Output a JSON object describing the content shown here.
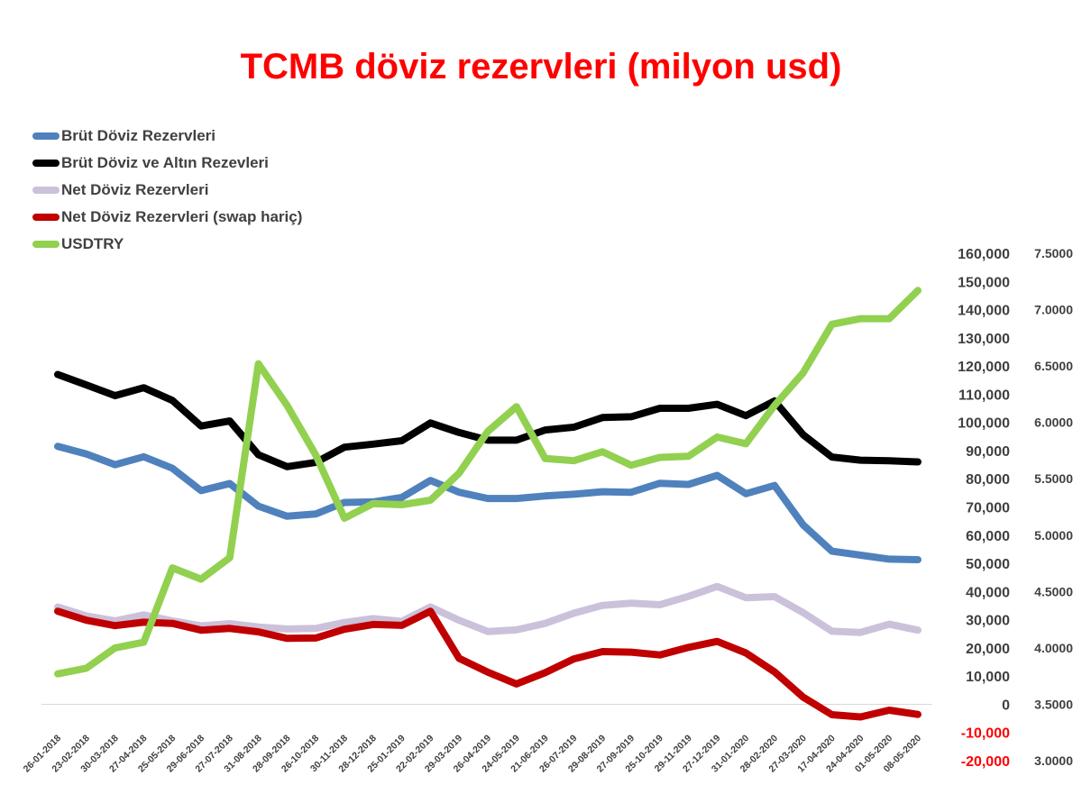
{
  "chart_data": {
    "type": "line",
    "title": "TCMB döviz rezervleri (milyon usd)",
    "title_color": "#ff0000",
    "x": [
      "26-01-2018",
      "23-02-2018",
      "30-03-2018",
      "27-04-2018",
      "25-05-2018",
      "29-06-2018",
      "27-07-2018",
      "31-08-2018",
      "28-09-2018",
      "26-10-2018",
      "30-11-2018",
      "28-12-2018",
      "25-01-2019",
      "22-02-2019",
      "29-03-2019",
      "26-04-2019",
      "24-05-2019",
      "21-06-2019",
      "26-07-2019",
      "29-08-2019",
      "27-09-2019",
      "25-10-2019",
      "29-11-2019",
      "27-12-2019",
      "31-01-2020",
      "28-02-2020",
      "27-03-2020",
      "17-04-2020",
      "24-04-2020",
      "01-05-2020",
      "08-05-2020"
    ],
    "y_left": {
      "ylim": [
        -20000,
        160000
      ],
      "ticks": [
        160000,
        150000,
        140000,
        130000,
        120000,
        110000,
        100000,
        90000,
        80000,
        70000,
        60000,
        50000,
        40000,
        30000,
        20000,
        10000,
        0,
        -10000,
        -20000
      ],
      "tick_labels": [
        "160,000",
        "150,000",
        "140,000",
        "130,000",
        "120,000",
        "110,000",
        "100,000",
        "90,000",
        "80,000",
        "70,000",
        "60,000",
        "50,000",
        "40,000",
        "30,000",
        "20,000",
        "10,000",
        "0",
        "-10,000",
        "-20,000"
      ],
      "negative_color": "#ff0000"
    },
    "y_right": {
      "ylim": [
        3.0,
        7.5
      ],
      "ticks": [
        7.5,
        7.0,
        6.5,
        6.0,
        5.5,
        5.0,
        4.5,
        4.0,
        3.5,
        3.0
      ],
      "tick_labels": [
        "7.5000",
        "7.0000",
        "6.5000",
        "6.0000",
        "5.5000",
        "5.0000",
        "4.5000",
        "4.0000",
        "3.5000",
        "3.0000"
      ]
    },
    "legend_position": "top-left",
    "grid": false,
    "series": [
      {
        "name": "Brüt Döviz Rezervleri",
        "color": "#4f81bd",
        "axis": "left",
        "values": [
          91500,
          88800,
          85000,
          87800,
          83700,
          75800,
          78300,
          70300,
          66700,
          67500,
          71600,
          71800,
          73400,
          79400,
          75200,
          73000,
          73000,
          73900,
          74500,
          75400,
          75200,
          78400,
          78000,
          81200,
          74700,
          77600,
          63600,
          54300,
          52900,
          51500,
          51300
        ]
      },
      {
        "name": "Brüt Döviz ve Altın Rezevleri",
        "color": "#000000",
        "axis": "left",
        "values": [
          117000,
          113300,
          109500,
          112300,
          107800,
          98700,
          100500,
          88500,
          84300,
          85800,
          91200,
          92300,
          93500,
          99800,
          96400,
          93700,
          93700,
          97300,
          98300,
          101700,
          102000,
          105000,
          105000,
          106400,
          102400,
          107600,
          95600,
          87700,
          86600,
          86400,
          86000
        ]
      },
      {
        "name": "Net Döviz Rezervleri",
        "color": "#ccc1da",
        "axis": "left",
        "values": [
          34500,
          31300,
          29600,
          31700,
          29600,
          27800,
          28600,
          27400,
          26700,
          26900,
          29000,
          30400,
          29400,
          34500,
          29800,
          25800,
          26400,
          28700,
          32300,
          35100,
          35900,
          35300,
          38300,
          41800,
          37800,
          38200,
          32500,
          25900,
          25500,
          28400,
          26300
        ]
      },
      {
        "name": "Net Döviz Rezervleri (swap hariç)",
        "color": "#c00000",
        "axis": "left",
        "values": [
          33000,
          29800,
          27900,
          29100,
          28700,
          26300,
          26900,
          25700,
          23400,
          23500,
          26600,
          28300,
          28000,
          33000,
          16300,
          11400,
          7200,
          11200,
          16100,
          18700,
          18500,
          17500,
          20200,
          22300,
          18200,
          11500,
          2500,
          -3700,
          -4500,
          -2100,
          -3600
        ]
      },
      {
        "name": "USDTRY",
        "color": "#92d050",
        "axis": "right",
        "values": [
          3.77,
          3.82,
          4.0,
          4.05,
          4.71,
          4.61,
          4.8,
          6.52,
          6.15,
          5.71,
          5.15,
          5.28,
          5.27,
          5.31,
          5.55,
          5.92,
          6.14,
          5.68,
          5.66,
          5.74,
          5.62,
          5.69,
          5.7,
          5.87,
          5.81,
          6.15,
          6.44,
          6.87,
          6.92,
          6.92,
          7.17
        ]
      }
    ]
  }
}
